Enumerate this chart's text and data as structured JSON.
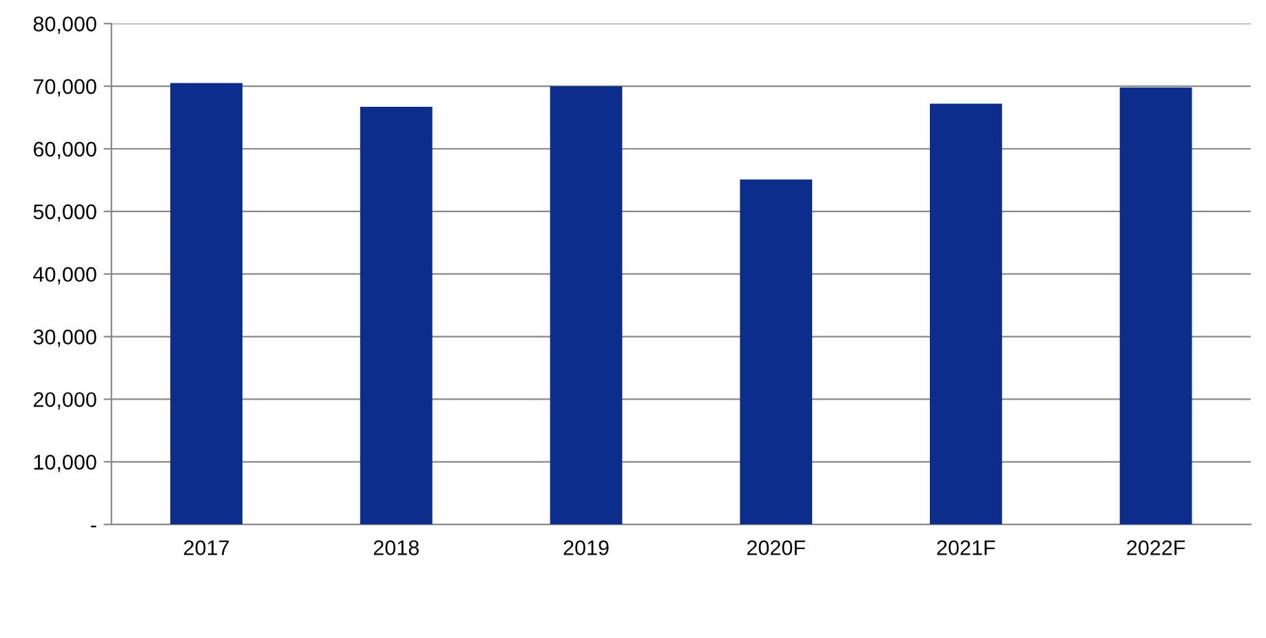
{
  "chart_data": {
    "type": "bar",
    "categories": [
      "2017",
      "2018",
      "2019",
      "2020F",
      "2021F",
      "2022F"
    ],
    "values": [
      70500,
      66700,
      70000,
      55100,
      67200,
      69800
    ],
    "color": "#0c2d8c",
    "ylim": [
      0,
      80000
    ],
    "yticks": [
      {
        "value": 0,
        "label": "-"
      },
      {
        "value": 10000,
        "label": "10,000"
      },
      {
        "value": 20000,
        "label": "20,000"
      },
      {
        "value": 30000,
        "label": "30,000"
      },
      {
        "value": 40000,
        "label": "40,000"
      },
      {
        "value": 50000,
        "label": "50,000"
      },
      {
        "value": 60000,
        "label": "60,000"
      },
      {
        "value": 70000,
        "label": "70,000"
      },
      {
        "value": 80000,
        "label": "80,000"
      }
    ],
    "grid": "y"
  }
}
